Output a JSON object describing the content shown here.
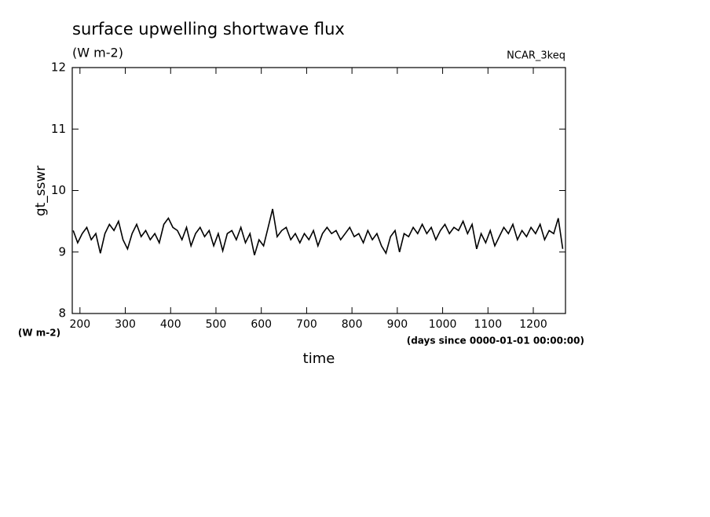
{
  "chart_data": {
    "type": "line",
    "title": "surface upwelling shortwave flux",
    "subtitle": "(W m-2)",
    "annotation": "NCAR_3keq",
    "y_label": "gt_sswr",
    "y_units": "(W m-2)",
    "x_label": "time",
    "x_units": "(days since 0000-01-01 00:00:00)",
    "x": [
      185,
      195,
      205,
      215,
      225,
      235,
      245,
      255,
      265,
      275,
      285,
      295,
      305,
      315,
      325,
      335,
      345,
      355,
      365,
      375,
      385,
      395,
      405,
      415,
      425,
      435,
      445,
      455,
      465,
      475,
      485,
      495,
      505,
      515,
      525,
      535,
      545,
      555,
      565,
      575,
      585,
      595,
      605,
      615,
      625,
      635,
      645,
      655,
      665,
      675,
      685,
      695,
      705,
      715,
      725,
      735,
      745,
      755,
      765,
      775,
      785,
      795,
      805,
      815,
      825,
      835,
      845,
      855,
      865,
      875,
      885,
      895,
      905,
      915,
      925,
      935,
      945,
      955,
      965,
      975,
      985,
      995,
      1005,
      1015,
      1025,
      1035,
      1045,
      1055,
      1065,
      1075,
      1085,
      1095,
      1105,
      1115,
      1125,
      1135,
      1145,
      1155,
      1165,
      1175,
      1185,
      1195,
      1205,
      1215,
      1225,
      1235,
      1245,
      1255,
      1265
    ],
    "series": [
      {
        "name": "gt_sswr",
        "color": "#000000",
        "values": [
          9.35,
          9.15,
          9.3,
          9.4,
          9.2,
          9.3,
          8.98,
          9.3,
          9.45,
          9.35,
          9.5,
          9.2,
          9.05,
          9.3,
          9.45,
          9.25,
          9.35,
          9.2,
          9.3,
          9.15,
          9.45,
          9.55,
          9.4,
          9.35,
          9.2,
          9.4,
          9.1,
          9.3,
          9.4,
          9.25,
          9.35,
          9.1,
          9.3,
          9.02,
          9.3,
          9.35,
          9.2,
          9.4,
          9.15,
          9.3,
          8.95,
          9.2,
          9.1,
          9.4,
          9.7,
          9.25,
          9.35,
          9.4,
          9.2,
          9.3,
          9.15,
          9.3,
          9.2,
          9.35,
          9.1,
          9.3,
          9.4,
          9.3,
          9.35,
          9.2,
          9.3,
          9.4,
          9.25,
          9.3,
          9.15,
          9.35,
          9.2,
          9.3,
          9.1,
          8.98,
          9.25,
          9.35,
          9.0,
          9.3,
          9.25,
          9.4,
          9.3,
          9.45,
          9.3,
          9.4,
          9.2,
          9.35,
          9.45,
          9.3,
          9.4,
          9.35,
          9.5,
          9.3,
          9.45,
          9.05,
          9.3,
          9.15,
          9.35,
          9.1,
          9.25,
          9.4,
          9.3,
          9.45,
          9.2,
          9.35,
          9.25,
          9.4,
          9.3,
          9.45,
          9.2,
          9.35,
          9.3,
          9.55,
          9.05
        ]
      }
    ],
    "xlim": [
      183,
      1271
    ],
    "ylim": [
      8,
      12
    ],
    "xticks": [
      200,
      300,
      400,
      500,
      600,
      700,
      800,
      900,
      1000,
      1100,
      1200
    ],
    "yticks": [
      8,
      9,
      10,
      11,
      12
    ]
  }
}
